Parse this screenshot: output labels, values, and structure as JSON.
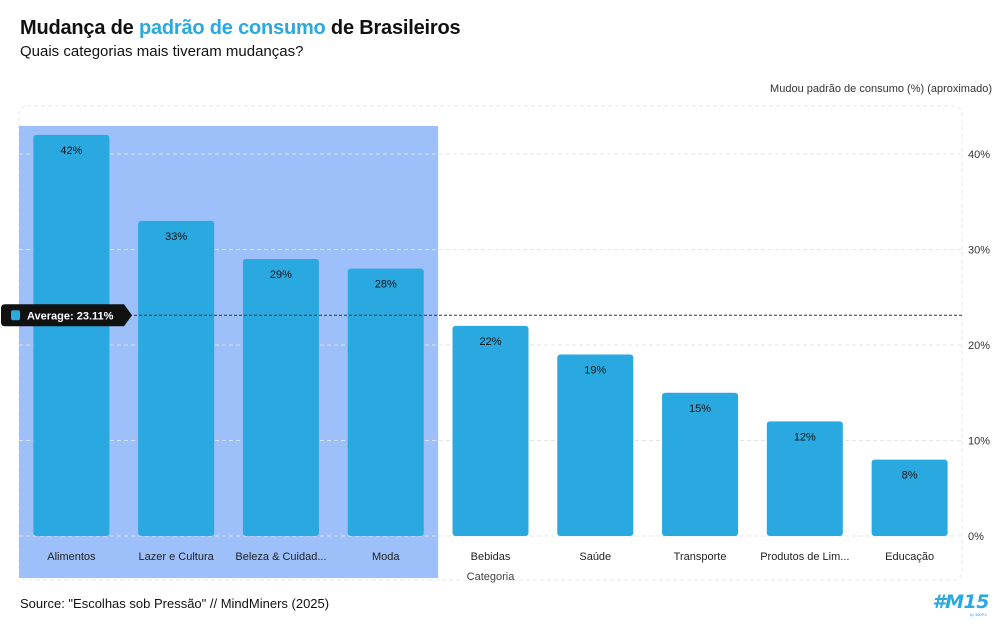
{
  "header": {
    "title_prefix": "Mudança de ",
    "title_highlight": "padrão de consumo",
    "title_suffix": " de Brasileiros",
    "subtitle": "Quais categorias mais tiveram mudanças?"
  },
  "footer": {
    "source": "Source: \"Escolhas sob Pressão\" // MindMiners (2025)",
    "logo_text": "#M15",
    "logo_subtext": "by 360PX"
  },
  "colors": {
    "bar": "#29a9e0",
    "highlight_region": "#9dbffa",
    "title_accent": "#29a9e0",
    "average_badge": "#111111"
  },
  "chart_data": {
    "type": "bar",
    "categories": [
      "Alimentos",
      "Lazer e Cultura",
      "Beleza & Cuidad...",
      "Moda",
      "Bebidas",
      "Saúde",
      "Transporte",
      "Produtos de Lim...",
      "Educação"
    ],
    "values": [
      42,
      33,
      29,
      28,
      22,
      19,
      15,
      12,
      8
    ],
    "data_labels": [
      "42%",
      "33%",
      "29%",
      "28%",
      "22%",
      "19%",
      "15%",
      "12%",
      "8%"
    ],
    "xlabel": "Categoria",
    "ylabel": "Mudou padrão de consumo (%) (aproximado)",
    "ylim": [
      0,
      45
    ],
    "yticks": [
      0,
      10,
      20,
      30,
      40
    ],
    "ytick_labels": [
      "0%",
      "10%",
      "20%",
      "30%",
      "40%"
    ],
    "y_axis_position": "right",
    "grid": true,
    "average": {
      "value": 23.11,
      "label": "Average: 23.11%"
    },
    "highlighted_categories": [
      "Alimentos",
      "Lazer e Cultura",
      "Beleza & Cuidad...",
      "Moda"
    ]
  }
}
